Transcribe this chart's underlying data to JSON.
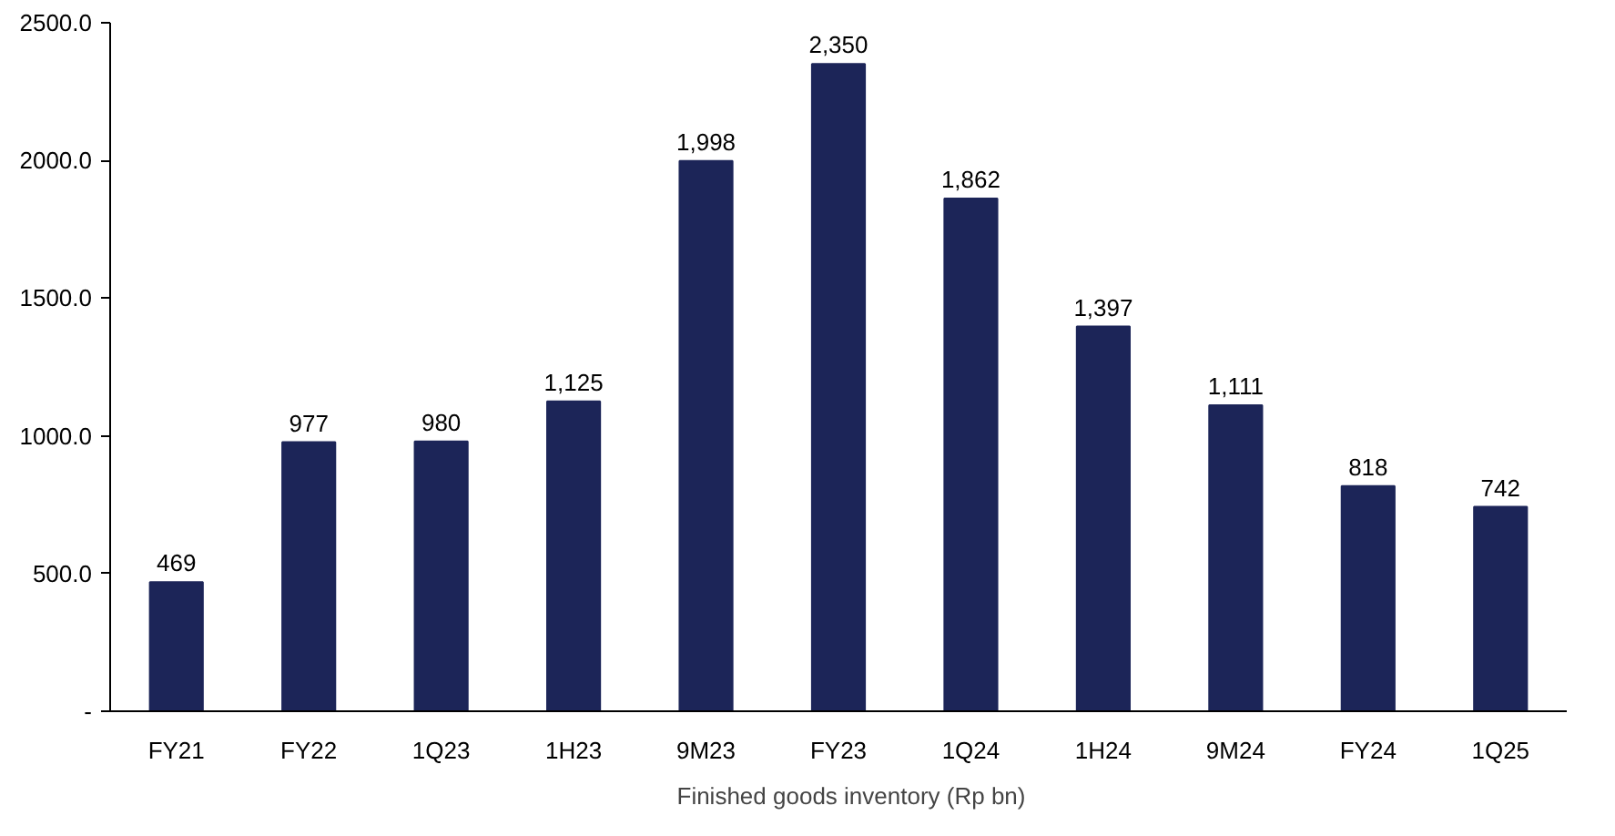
{
  "chart_data": {
    "type": "bar",
    "categories": [
      "FY21",
      "FY22",
      "1Q23",
      "1H23",
      "9M23",
      "FY23",
      "1Q24",
      "1H24",
      "9M24",
      "FY24",
      "1Q25"
    ],
    "series": [
      {
        "name": "Finished goods inventory (Rp bn)",
        "color": "#1c2558",
        "values": [
          469,
          977,
          980,
          1125,
          1998,
          2350,
          1862,
          1397,
          1111,
          818,
          742
        ],
        "value_labels": [
          "469",
          "977",
          "980",
          "1,125",
          "1,998",
          "2,350",
          "1,862",
          "1,397",
          "1,111",
          "818",
          "742"
        ]
      }
    ],
    "ylim": [
      0,
      2500
    ],
    "yticks": [
      {
        "value": 0,
        "label": "-"
      },
      {
        "value": 500,
        "label": "500.0"
      },
      {
        "value": 1000,
        "label": "1000.0"
      },
      {
        "value": 1500,
        "label": "1500.0"
      },
      {
        "value": 2000,
        "label": "2000.0"
      },
      {
        "value": 2500,
        "label": "2500.0"
      }
    ],
    "grid": false,
    "legend": "bottom"
  }
}
